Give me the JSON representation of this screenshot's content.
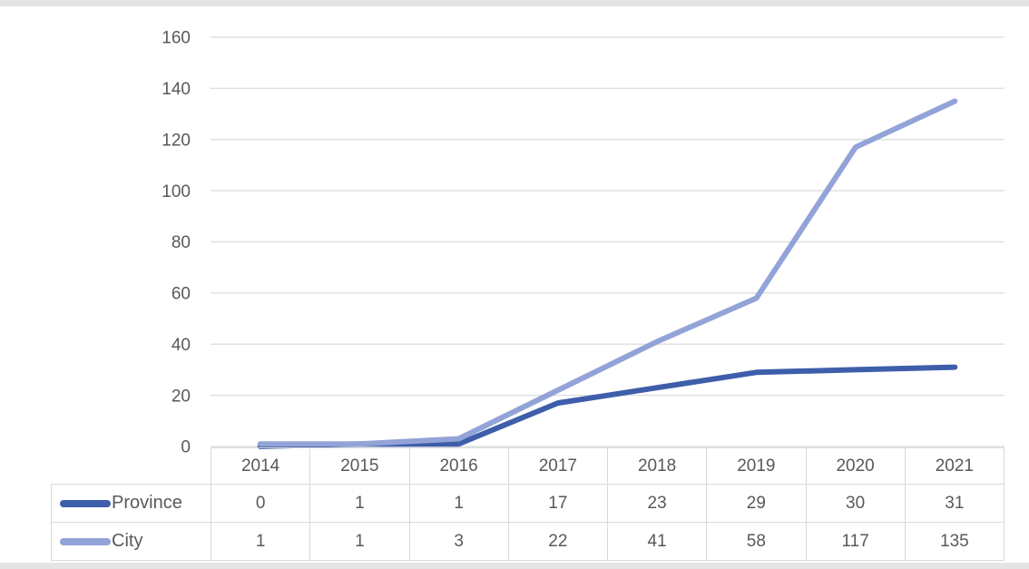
{
  "figure": {
    "background_color": "#ffffff",
    "page_strip_color": "#e4e4e4",
    "plot_border_color": "#d9d9d9"
  },
  "chart_data": {
    "type": "line",
    "title": "",
    "xlabel": "",
    "ylabel": "",
    "categories": [
      "2014",
      "2015",
      "2016",
      "2017",
      "2018",
      "2019",
      "2020",
      "2021"
    ],
    "series": [
      {
        "name": "Province",
        "values": [
          0,
          1,
          1,
          17,
          23,
          29,
          30,
          31
        ],
        "color": "#3e5eaa"
      },
      {
        "name": "City",
        "values": [
          1,
          1,
          3,
          22,
          41,
          58,
          117,
          135
        ],
        "color": "#92a3d8"
      }
    ],
    "ylim": [
      0,
      160
    ],
    "yticks": [
      0,
      20,
      40,
      60,
      80,
      100,
      120,
      140,
      160
    ],
    "ytick_labels": [
      "0",
      "20",
      "40",
      "60",
      "80",
      "100",
      "120",
      "140",
      "160"
    ],
    "grid": true,
    "gridline_color": "#e0e0e4",
    "axis_text_color": "#595959",
    "legend_position": "data-table-left",
    "data_table_shown": true,
    "data_table_border_color": "#d9d9d9",
    "line_width": 6
  }
}
